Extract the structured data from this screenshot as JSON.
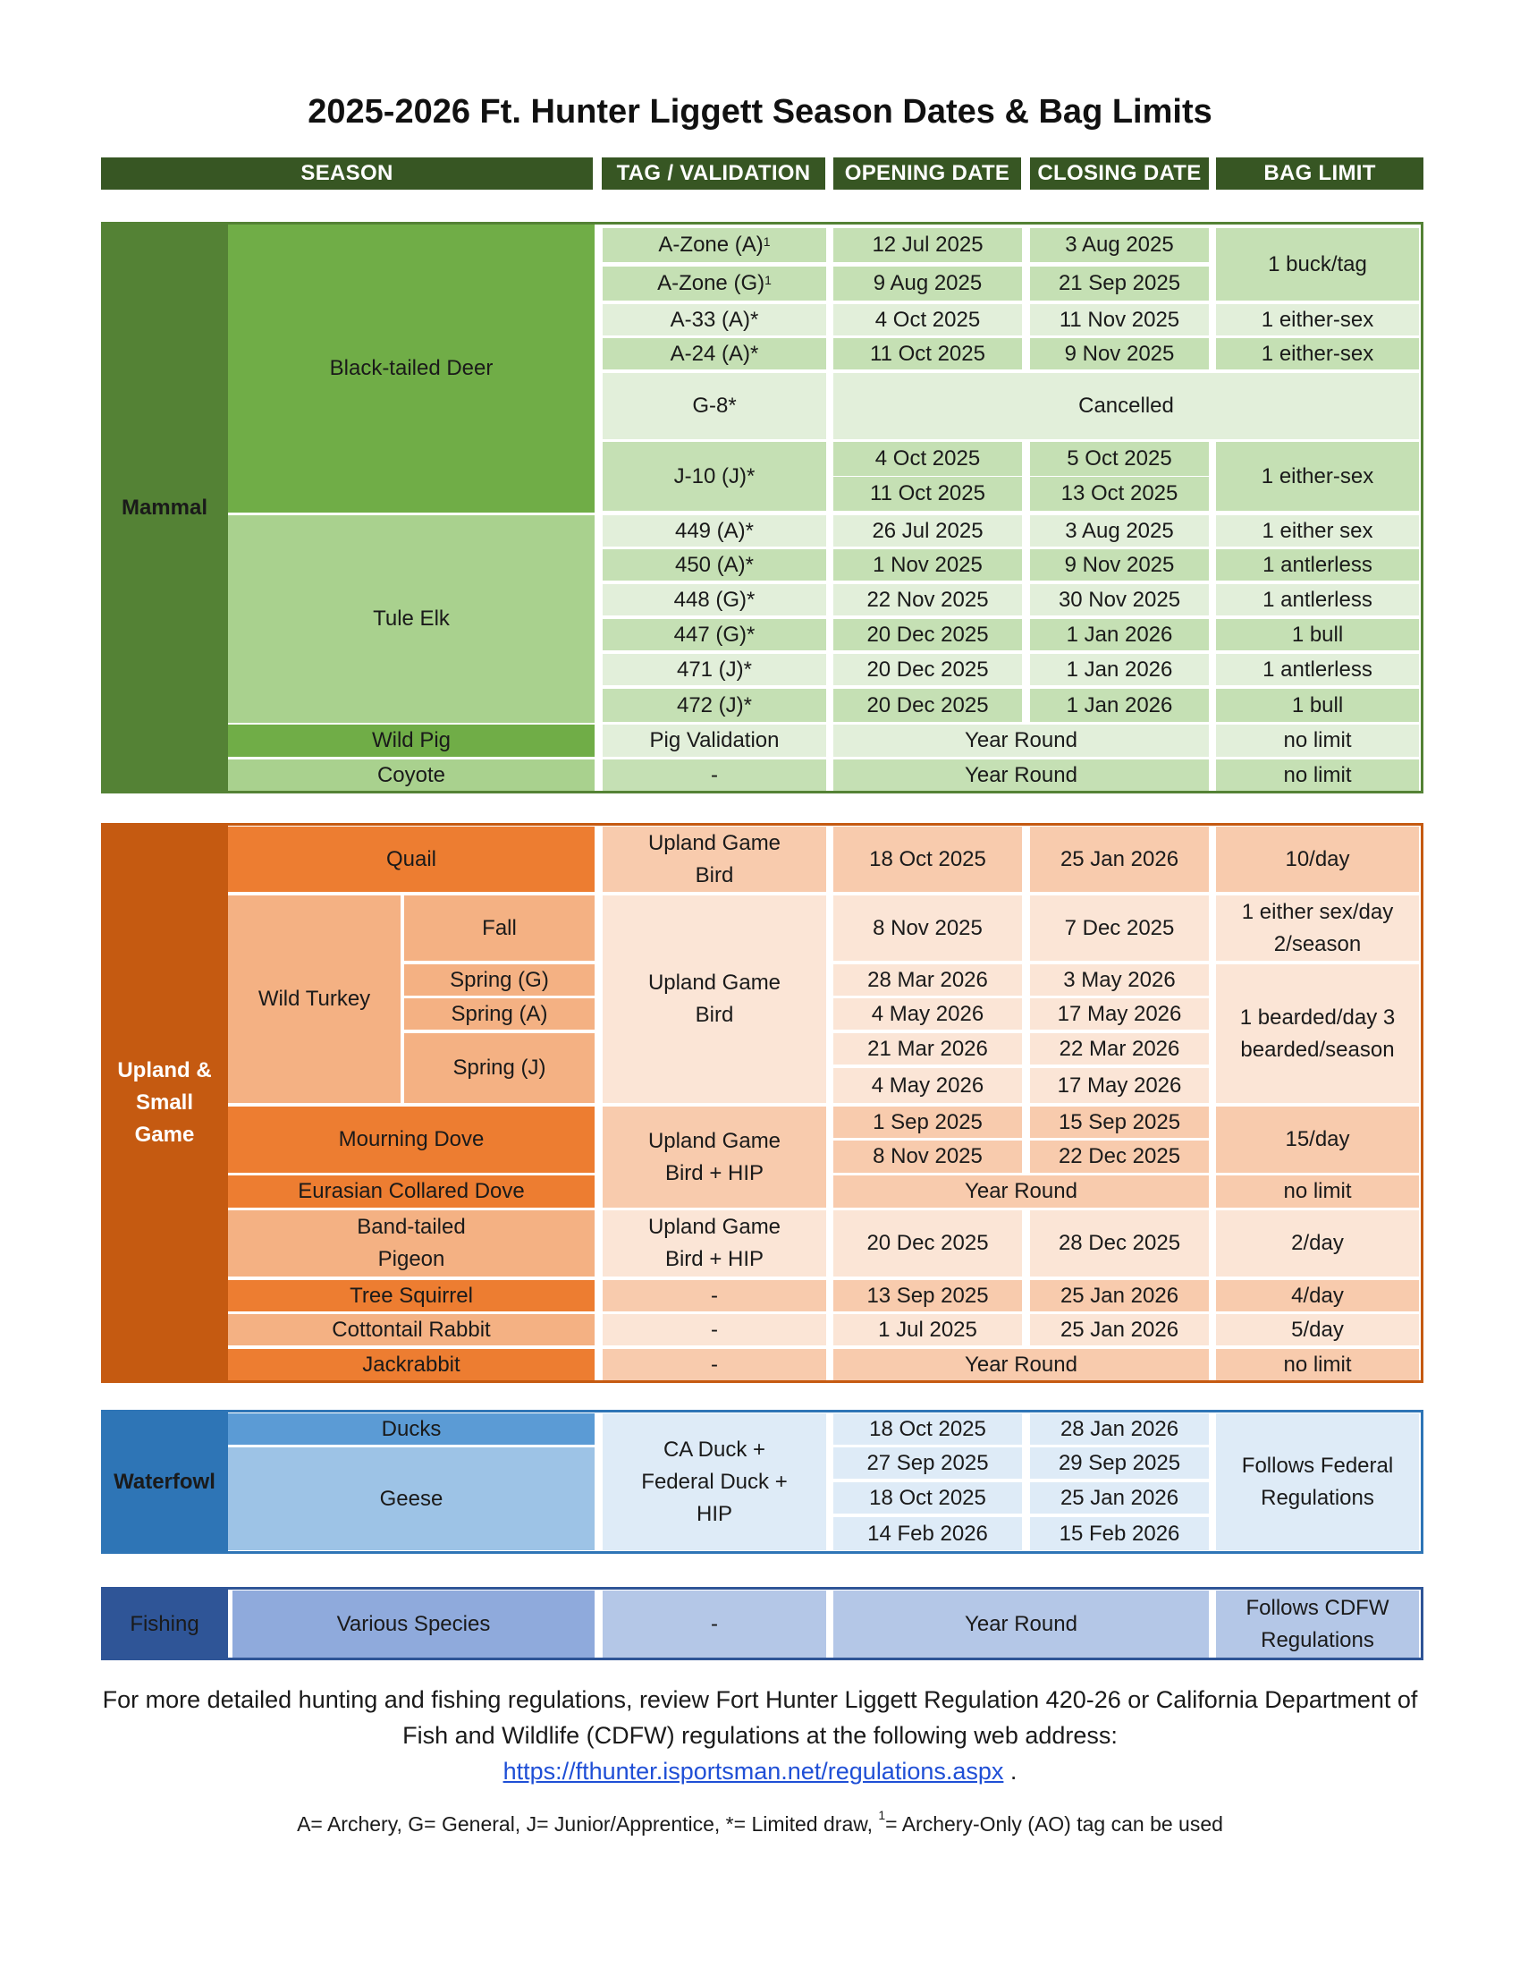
{
  "title": "2025-2026 Ft. Hunter Liggett Season Dates & Bag Limits",
  "headers": {
    "season": "SEASON",
    "tag": "TAG / VALIDATION",
    "opening": "OPENING DATE",
    "closing": "CLOSING DATE",
    "bag": "BAG LIMIT"
  },
  "colors": {
    "header_green": "#375623",
    "mammal_dark": "#548235",
    "mammal_mid": "#70AD47",
    "mammal_light": "#A9D18E",
    "mammal_pale": "#C5E0B4",
    "mammal_paler": "#E2EFDA",
    "upland_dark": "#C55A11",
    "upland_mid": "#ED7D31",
    "upland_light": "#F4B183",
    "upland_pale": "#F8CBAD",
    "upland_paler": "#FBE5D6",
    "water_dark": "#2E75B6",
    "water_mid": "#5B9BD5",
    "water_light": "#9DC3E6",
    "water_pale": "#DEEBF7",
    "fish_dark": "#2F5597",
    "fish_mid": "#8FAADC",
    "fish_light": "#B4C7E7",
    "link": "#1F4FD6"
  },
  "mammal": {
    "label": "Mammal",
    "deer": {
      "label": "Black-tailed Deer",
      "rows": [
        {
          "tag": "A-Zone (A)",
          "tag_sup": "1",
          "open": "12 Jul 2025",
          "close": "3 Aug 2025"
        },
        {
          "tag": "A-Zone (G)",
          "tag_sup": "1",
          "open": "9 Aug 2025",
          "close": "21 Sep 2025"
        },
        {
          "tag": "A-33 (A)*",
          "open": "4 Oct 2025",
          "close": "11 Nov 2025",
          "bag": "1 either-sex"
        },
        {
          "tag": "A-24 (A)*",
          "open": "11 Oct 2025",
          "close": "9 Nov 2025",
          "bag": "1 either-sex"
        },
        {
          "tag": "G-8*",
          "status": "Cancelled"
        },
        {
          "tag": "J-10 (J)*",
          "open": [
            "4 Oct 2025",
            "11 Oct 2025"
          ],
          "close": [
            "5 Oct 2025",
            "13 Oct 2025"
          ],
          "bag": "1 either-sex"
        }
      ],
      "azone_bag": "1 buck/tag"
    },
    "elk": {
      "label": "Tule Elk",
      "rows": [
        {
          "tag": "449 (A)*",
          "open": "26 Jul 2025",
          "close": "3 Aug 2025",
          "bag": "1 either sex"
        },
        {
          "tag": "450 (A)*",
          "open": "1 Nov 2025",
          "close": "9 Nov 2025",
          "bag": "1 antlerless"
        },
        {
          "tag": "448 (G)*",
          "open": "22 Nov 2025",
          "close": "30 Nov 2025",
          "bag": "1 antlerless"
        },
        {
          "tag": "447 (G)*",
          "open": "20 Dec 2025",
          "close": "1 Jan 2026",
          "bag": "1 bull"
        },
        {
          "tag": "471 (J)*",
          "open": "20 Dec 2025",
          "close": "1 Jan 2026",
          "bag": "1 antlerless"
        },
        {
          "tag": "472 (J)*",
          "open": "20 Dec 2025",
          "close": "1 Jan 2026",
          "bag": "1 bull"
        }
      ]
    },
    "pig": {
      "label": "Wild Pig",
      "tag": "Pig Validation",
      "dates": "Year Round",
      "bag": "no limit"
    },
    "coyote": {
      "label": "Coyote",
      "tag": "-",
      "dates": "Year Round",
      "bag": "no limit"
    }
  },
  "upland": {
    "label": "Upland & Small Game",
    "quail": {
      "label": "Quail",
      "tag": "Upland Game Bird",
      "open": "18 Oct 2025",
      "close": "25 Jan 2026",
      "bag": "10/day"
    },
    "turkey": {
      "label": "Wild Turkey",
      "tag": "Upland Game Bird",
      "fall": {
        "label": "Fall",
        "open": "8 Nov 2025",
        "close": "7 Dec 2025",
        "bag": "1 either sex/day 2/season"
      },
      "spring_g": {
        "label": "Spring (G)",
        "open": "28 Mar 2026",
        "close": "3 May 2026"
      },
      "spring_a": {
        "label": "Spring (A)",
        "open": "4 May 2026",
        "close": "17 May 2026"
      },
      "spring_j": {
        "label": "Spring (J)",
        "open": [
          "21 Mar 2026",
          "4 May 2026"
        ],
        "close": [
          "22 Mar 2026",
          "17 May 2026"
        ]
      },
      "spring_bag": "1 bearded/day 3 bearded/season"
    },
    "mourning_dove": {
      "label": "Mourning Dove",
      "open": [
        "1 Sep 2025",
        "8 Nov 2025"
      ],
      "close": [
        "15 Sep 2025",
        "22 Dec 2025"
      ],
      "bag": "15/day"
    },
    "dove_tag": "Upland Game Bird + HIP",
    "collared_dove": {
      "label": "Eurasian Collared Dove",
      "dates": "Year Round",
      "bag": "no limit"
    },
    "pigeon": {
      "label": "Band-tailed Pigeon",
      "tag": "Upland Game Bird + HIP",
      "open": "20 Dec 2025",
      "close": "28 Dec 2025",
      "bag": "2/day"
    },
    "squirrel": {
      "label": "Tree Squirrel",
      "tag": "-",
      "open": "13 Sep 2025",
      "close": "25 Jan 2026",
      "bag": "4/day"
    },
    "cottontail": {
      "label": "Cottontail Rabbit",
      "tag": "-",
      "open": "1 Jul 2025",
      "close": "25 Jan 2026",
      "bag": "5/day"
    },
    "jackrabbit": {
      "label": "Jackrabbit",
      "tag": "-",
      "dates": "Year Round",
      "bag": "no limit"
    }
  },
  "waterfowl": {
    "label": "Waterfowl",
    "ducks": "Ducks",
    "geese": "Geese",
    "tag": "CA Duck + Federal Duck + HIP",
    "open": [
      "18 Oct 2025",
      "27 Sep 2025",
      "18 Oct 2025",
      "14 Feb 2026"
    ],
    "close": [
      "28 Jan 2026",
      "29 Sep 2025",
      "25 Jan 2026",
      "15 Feb 2026"
    ],
    "bag": "Follows Federal Regulations"
  },
  "fishing": {
    "label": "Fishing",
    "species": "Various Species",
    "tag": "-",
    "dates": "Year Round",
    "bag": "Follows CDFW Regulations"
  },
  "footer": {
    "text": "For more detailed hunting and fishing regulations, review Fort Hunter Liggett Regulation 420-26 or California Department of Fish and Wildlife (CDFW) regulations at the following web address:",
    "link": "https://fthunter.isportsman.net/regulations.aspx",
    "trail": " ."
  },
  "legend": {
    "text_before": "A= Archery, G= General, J= Junior/Apprentice, *= Limited draw, ",
    "sup": "1",
    "text_after": "= Archery-Only (AO) tag can be used"
  }
}
